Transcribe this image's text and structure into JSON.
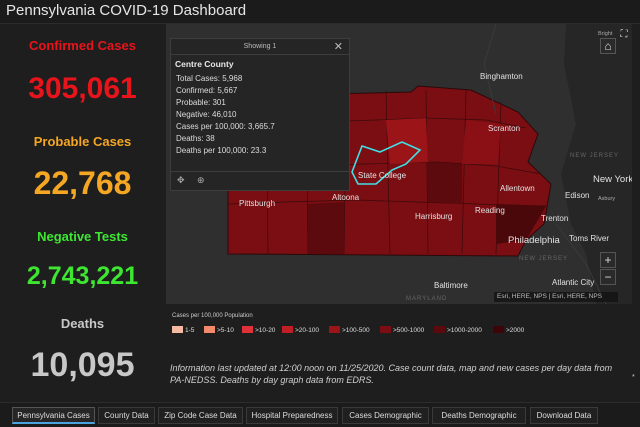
{
  "header": {
    "title": "Pennsylvania COVID-19 Dashboard"
  },
  "stats": {
    "confirmed": {
      "label": "Confirmed Cases",
      "value": "305,061",
      "color": "#e8141b"
    },
    "probable": {
      "label": "Probable Cases",
      "value": "22,768",
      "color": "#f5a623"
    },
    "negative": {
      "label": "Negative Tests",
      "value": "2,743,221",
      "color": "#3ee632"
    },
    "deaths": {
      "label": "Deaths",
      "value": "10,095",
      "color": "#c8c8c8"
    }
  },
  "popup": {
    "header": "Showing 1",
    "county": "Centre County",
    "lines": [
      "Total Cases: 5,968",
      "Confirmed: 5,667",
      "Probable: 301",
      "Negative: 46,010",
      "Cases per 100,000: 3,665.7",
      "Deaths: 38",
      "Deaths per 100,000: 23.3"
    ],
    "icons": [
      "move-icon",
      "zoom-to-icon",
      "close-icon"
    ]
  },
  "map": {
    "labels": {
      "binghamton": "Binghamton",
      "scranton": "Scranton",
      "new_york": "New York",
      "new_jersey_top": "NEW JERSEY",
      "allentown": "Allentown",
      "edison": "Edison",
      "state_college": "State College",
      "altoona": "Altoona",
      "pittsburgh": "Pittsburgh",
      "harrisburg": "Harrisburg",
      "reading": "Reading",
      "trenton": "Trenton",
      "philadelphia": "Philadelphia",
      "toms_river": "Toms River",
      "new_jersey_bottom": "NEW JERSEY",
      "baltimore": "Baltimore",
      "atlantic_city": "Atlantic City",
      "maryland": "MARYLAND",
      "asbury": "Asbury",
      "bright": "Bright"
    },
    "attribution": "Esri, HERE, NPS | Esri, HERE, NPS",
    "zoom_in": "+",
    "zoom_out": "−"
  },
  "legend": {
    "title": "Cases per 100,000 Population",
    "items": [
      {
        "label": "1-5",
        "color": "#f5b8a0"
      },
      {
        "label": ">5-10",
        "color": "#f08a6a"
      },
      {
        "label": ">10-20",
        "color": "#e0303a"
      },
      {
        "label": ">20-100",
        "color": "#c01e25"
      },
      {
        "label": ">100-500",
        "color": "#9a1418"
      },
      {
        "label": ">500-1000",
        "color": "#7a0e12"
      },
      {
        "label": ">1000-2000",
        "color": "#5c0a0d"
      },
      {
        "label": ">2000",
        "color": "#3e0508"
      }
    ]
  },
  "info": {
    "text": "Information last updated at 12:00 noon on 11/25/2020. Case count data, map and new cases per day data from PA-NEDSS.  Deaths by day graph data from EDRS."
  },
  "tabs": [
    {
      "label": "Pennsylvania Cases",
      "active": true
    },
    {
      "label": "County Data"
    },
    {
      "label": "Zip Code Case Data"
    },
    {
      "label": "Hospital Preparedness"
    },
    {
      "label": "Cases Demographic"
    },
    {
      "label": "Deaths Demographic"
    },
    {
      "label": "Download Data"
    }
  ],
  "edge_note": "*"
}
